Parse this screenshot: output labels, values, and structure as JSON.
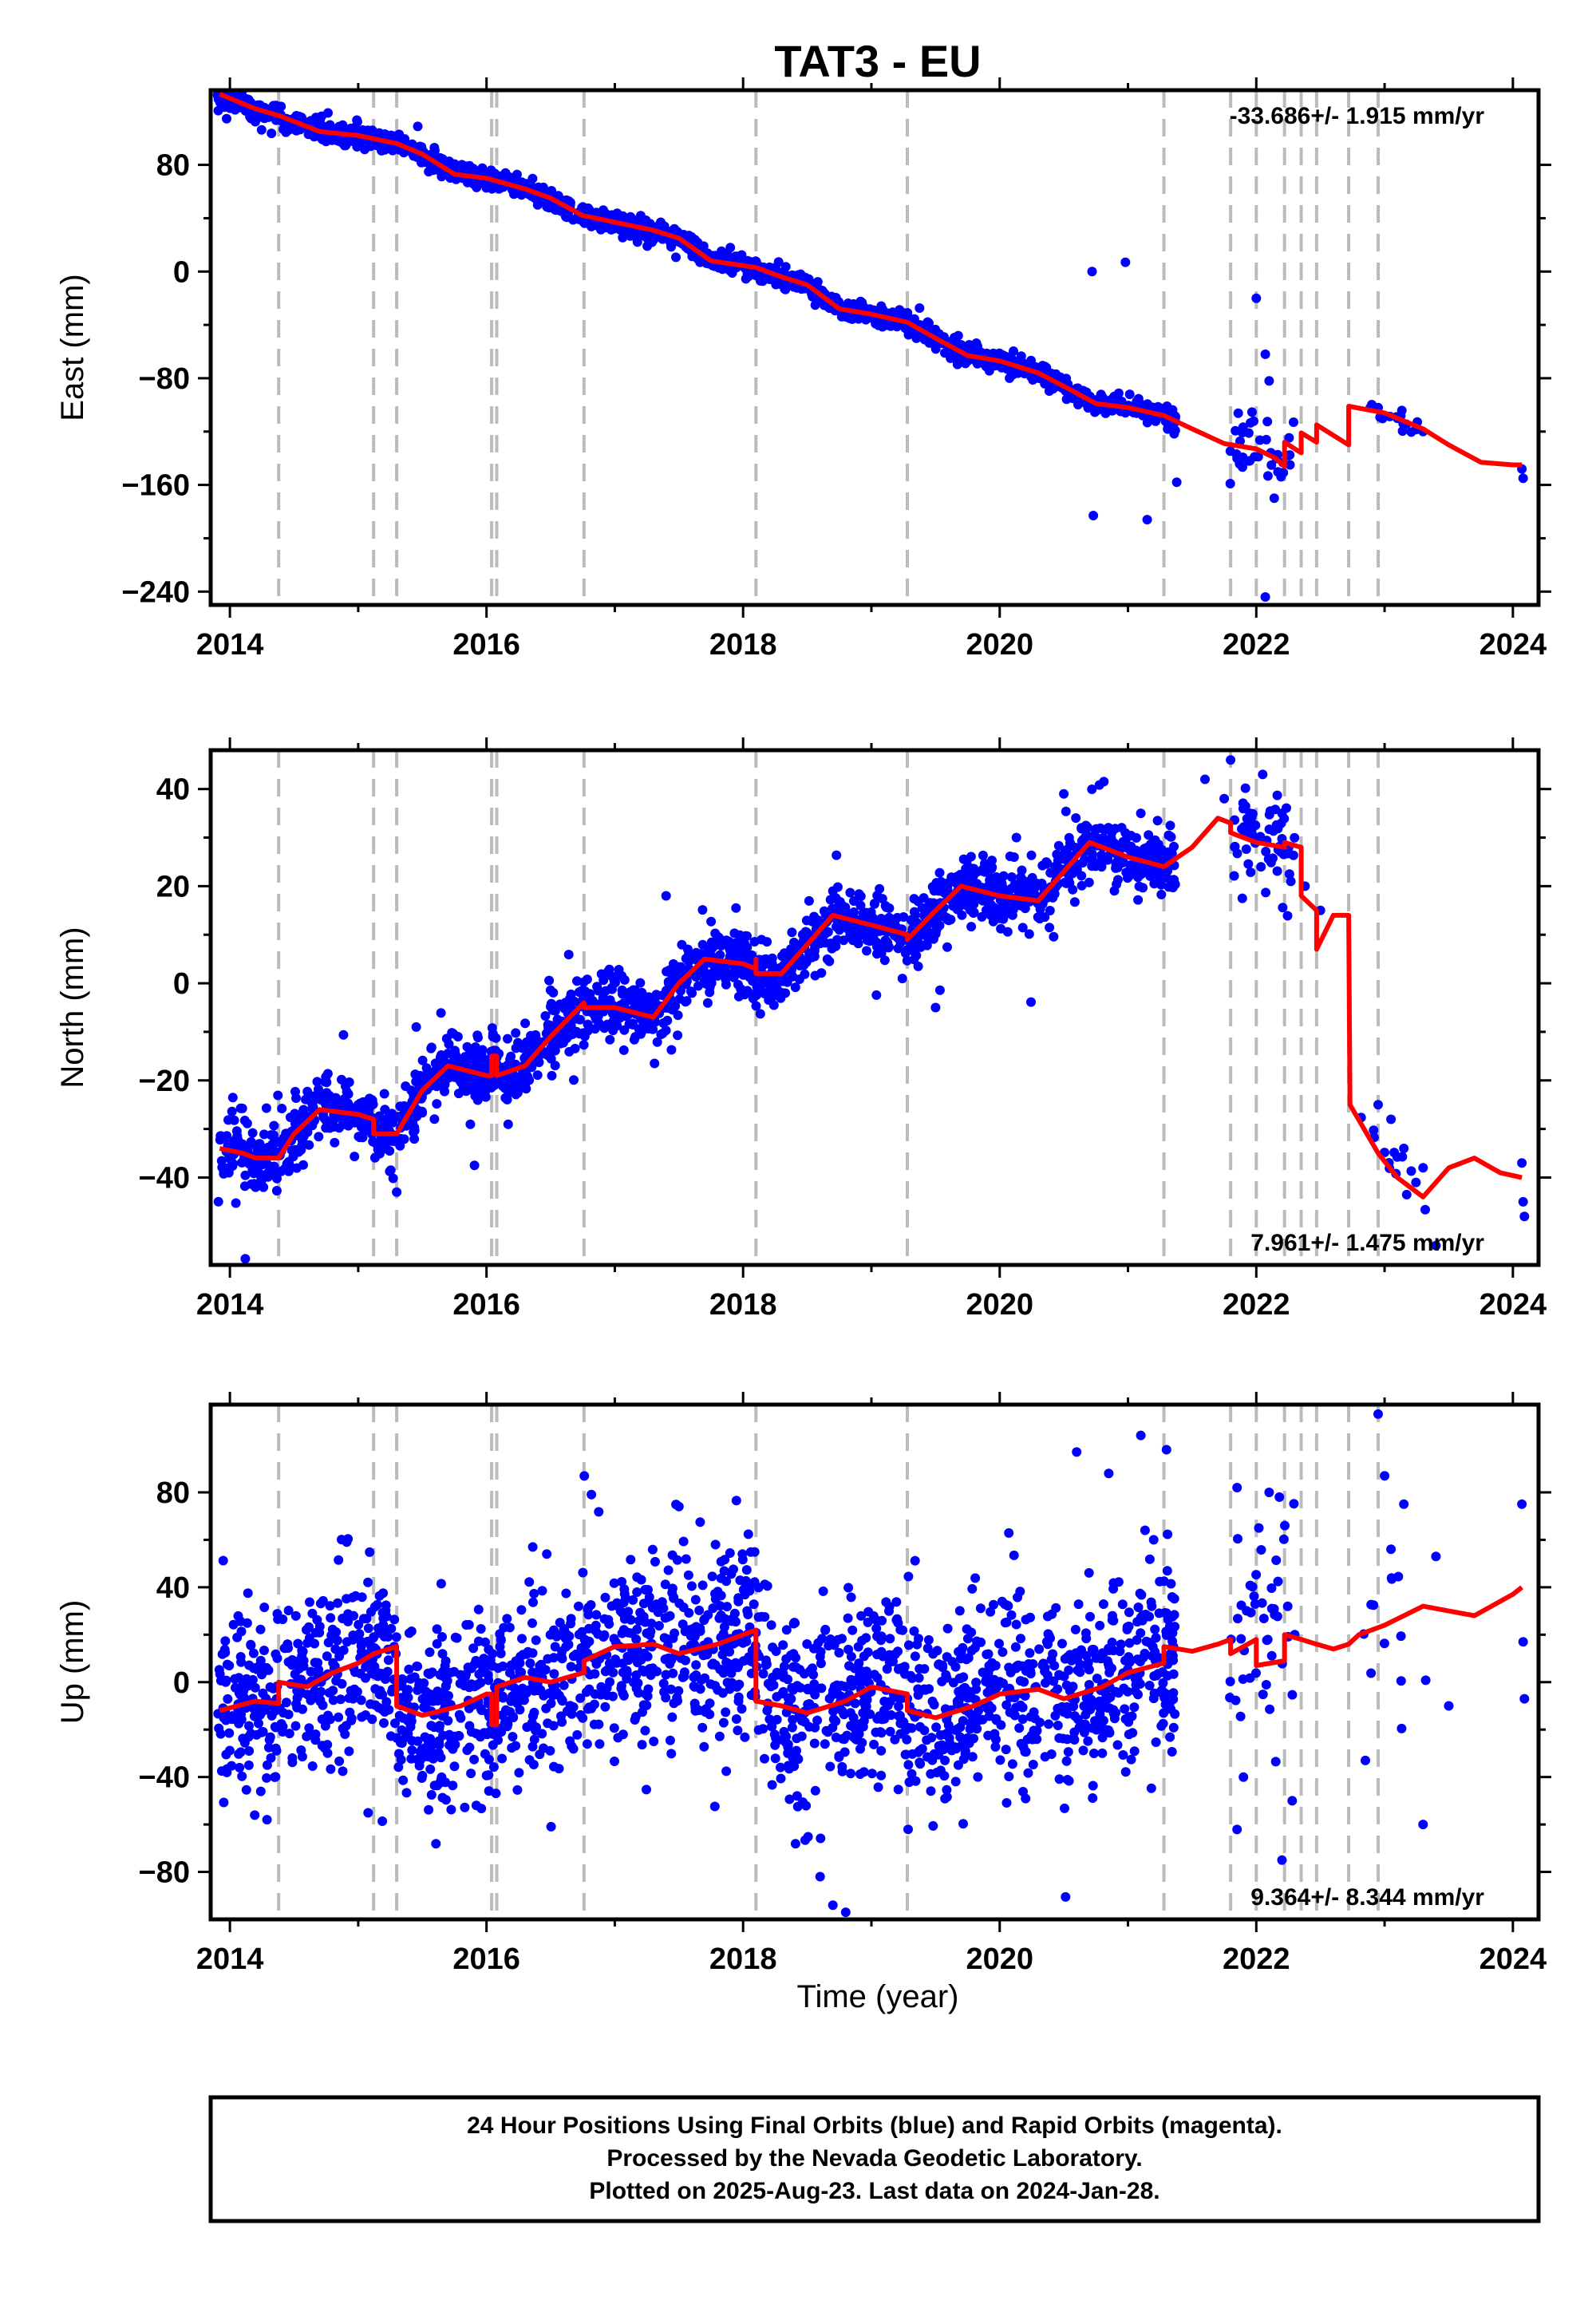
{
  "title": "TAT3 - EU",
  "xlabel": "Time (year)",
  "x_tick_labels": [
    "2014",
    "2016",
    "2018",
    "2020",
    "2022",
    "2024"
  ],
  "footer": {
    "line1": "24 Hour Positions Using Final Orbits (blue) and Rapid Orbits (magenta).",
    "line2": "Processed by the Nevada Geodetic Laboratory.",
    "line3": "Plotted on 2025-Aug-23. Last data on 2024-Jan-28."
  },
  "colors": {
    "points": "#0000ff",
    "model": "#ff0000",
    "event_lines": "#bbbbbb",
    "frame": "#000000"
  },
  "chart_data": [
    {
      "type": "scatter",
      "ylabel": "East (mm)",
      "rate_text": "-33.686+/- 1.915 mm/yr",
      "rate_position": "top-right",
      "xlim": [
        2013.85,
        2024.2
      ],
      "ylim": [
        -250,
        136
      ],
      "y_ticks": [
        80,
        0,
        -80,
        -160,
        -240
      ],
      "y_tick_labels": [
        "80",
        "0",
        "−80",
        "−160",
        "−240"
      ],
      "event_lines": [
        2014.38,
        2015.12,
        2015.3,
        2016.04,
        2016.08,
        2016.76,
        2018.1,
        2019.28,
        2021.28,
        2021.8,
        2022.0,
        2022.22,
        2022.35,
        2022.47,
        2022.72,
        2022.95
      ],
      "model": [
        [
          2013.92,
          133
        ],
        [
          2014.2,
          122
        ],
        [
          2014.38,
          117
        ],
        [
          2014.7,
          105
        ],
        [
          2015.0,
          102
        ],
        [
          2015.3,
          96
        ],
        [
          2015.5,
          88
        ],
        [
          2015.75,
          73
        ],
        [
          2016.0,
          70
        ],
        [
          2016.3,
          62
        ],
        [
          2016.5,
          55
        ],
        [
          2016.75,
          42
        ],
        [
          2017.0,
          37
        ],
        [
          2017.3,
          31
        ],
        [
          2017.5,
          25
        ],
        [
          2017.75,
          8
        ],
        [
          2018.1,
          3
        ],
        [
          2018.3,
          -4
        ],
        [
          2018.5,
          -10
        ],
        [
          2018.75,
          -28
        ],
        [
          2019.0,
          -32
        ],
        [
          2019.28,
          -38
        ],
        [
          2019.5,
          -50
        ],
        [
          2019.75,
          -63
        ],
        [
          2020.0,
          -67
        ],
        [
          2020.3,
          -76
        ],
        [
          2020.5,
          -86
        ],
        [
          2020.75,
          -99
        ],
        [
          2021.0,
          -102
        ],
        [
          2021.28,
          -108
        ],
        [
          2021.5,
          -118
        ],
        [
          2021.75,
          -129
        ],
        [
          2022.0,
          -133
        ],
        [
          2022.15,
          -140
        ],
        [
          2022.22,
          -146
        ],
        [
          2022.22,
          -128
        ],
        [
          2022.35,
          -136
        ],
        [
          2022.35,
          -121
        ],
        [
          2022.47,
          -128
        ],
        [
          2022.47,
          -115
        ],
        [
          2022.72,
          -130
        ],
        [
          2022.72,
          -101
        ],
        [
          2023.0,
          -106
        ],
        [
          2023.3,
          -118
        ],
        [
          2023.5,
          -130
        ],
        [
          2023.75,
          -143
        ],
        [
          2024.0,
          -145
        ],
        [
          2024.07,
          -145
        ]
      ],
      "points": [
        [
          2013.95,
          132
        ],
        [
          2014.15,
          124
        ],
        [
          2014.6,
          109
        ],
        [
          2015.0,
          102
        ],
        [
          2015.6,
          83
        ],
        [
          2016.0,
          70
        ],
        [
          2016.6,
          50
        ],
        [
          2017.2,
          32
        ],
        [
          2017.8,
          4
        ],
        [
          2018.3,
          -5
        ],
        [
          2019.0,
          -33
        ],
        [
          2019.7,
          -60
        ],
        [
          2020.2,
          -71
        ],
        [
          2020.8,
          -100
        ],
        [
          2021.2,
          -108
        ],
        [
          2020.72,
          0
        ],
        [
          2020.98,
          7
        ],
        [
          2020.73,
          -183
        ],
        [
          2021.15,
          -186
        ],
        [
          2021.38,
          -158
        ],
        [
          2021.85,
          -140
        ],
        [
          2022.0,
          -20
        ],
        [
          2022.07,
          -62
        ],
        [
          2022.1,
          -82
        ],
        [
          2022.14,
          -170
        ],
        [
          2022.25,
          -138
        ],
        [
          2022.07,
          -244
        ],
        [
          2022.95,
          -102
        ],
        [
          2023.1,
          -110
        ],
        [
          2023.3,
          -120
        ],
        [
          2024.07,
          -148
        ],
        [
          2024.08,
          -155
        ]
      ],
      "scatter_segments": [
        {
          "x_start": 2013.9,
          "x_end": 2021.37,
          "count": 1900,
          "spread": 3.5,
          "outlier_frac": 0.05,
          "outlier_spread": 9
        },
        {
          "x_start": 2021.78,
          "x_end": 2022.3,
          "count": 35,
          "spread": 10,
          "outlier_frac": 0.3,
          "outlier_spread": 20
        },
        {
          "x_start": 2022.8,
          "x_end": 2023.35,
          "count": 14,
          "spread": 4,
          "outlier_frac": 0.1,
          "outlier_spread": 6
        }
      ]
    },
    {
      "type": "scatter",
      "ylabel": "North (mm)",
      "rate_text": "7.961+/- 1.475 mm/yr",
      "rate_position": "bottom-right",
      "xlim": [
        2013.85,
        2024.2
      ],
      "ylim": [
        -58,
        48
      ],
      "y_ticks": [
        40,
        20,
        0,
        -20,
        -40
      ],
      "y_tick_labels": [
        "40",
        "20",
        "0",
        "−20",
        "−40"
      ],
      "event_lines": [
        2014.38,
        2015.12,
        2015.3,
        2016.04,
        2016.08,
        2016.76,
        2018.1,
        2019.28,
        2021.28,
        2021.8,
        2022.0,
        2022.22,
        2022.35,
        2022.47,
        2022.72,
        2022.95
      ],
      "model": [
        [
          2013.92,
          -34
        ],
        [
          2014.1,
          -35
        ],
        [
          2014.2,
          -36
        ],
        [
          2014.38,
          -36
        ],
        [
          2014.5,
          -31
        ],
        [
          2014.7,
          -26
        ],
        [
          2015.0,
          -27
        ],
        [
          2015.12,
          -28
        ],
        [
          2015.12,
          -31
        ],
        [
          2015.3,
          -31
        ],
        [
          2015.5,
          -22
        ],
        [
          2015.7,
          -17
        ],
        [
          2016.0,
          -19
        ],
        [
          2016.04,
          -19
        ],
        [
          2016.04,
          -15
        ],
        [
          2016.08,
          -15
        ],
        [
          2016.08,
          -19
        ],
        [
          2016.3,
          -17
        ],
        [
          2016.5,
          -11
        ],
        [
          2016.76,
          -4
        ],
        [
          2016.76,
          -5
        ],
        [
          2017.0,
          -5
        ],
        [
          2017.3,
          -7
        ],
        [
          2017.5,
          0
        ],
        [
          2017.7,
          5
        ],
        [
          2018.0,
          4
        ],
        [
          2018.1,
          3
        ],
        [
          2018.1,
          5
        ],
        [
          2018.1,
          2
        ],
        [
          2018.3,
          2
        ],
        [
          2018.5,
          8
        ],
        [
          2018.7,
          14
        ],
        [
          2019.0,
          12
        ],
        [
          2019.28,
          10
        ],
        [
          2019.28,
          9
        ],
        [
          2019.5,
          15
        ],
        [
          2019.7,
          20
        ],
        [
          2020.0,
          18
        ],
        [
          2020.3,
          17
        ],
        [
          2020.5,
          23
        ],
        [
          2020.7,
          29
        ],
        [
          2021.0,
          26
        ],
        [
          2021.28,
          24
        ],
        [
          2021.5,
          28
        ],
        [
          2021.7,
          34
        ],
        [
          2021.8,
          33
        ],
        [
          2021.8,
          31
        ],
        [
          2022.0,
          29
        ],
        [
          2022.22,
          28
        ],
        [
          2022.22,
          29
        ],
        [
          2022.35,
          28
        ],
        [
          2022.35,
          18
        ],
        [
          2022.47,
          15
        ],
        [
          2022.47,
          7
        ],
        [
          2022.6,
          14
        ],
        [
          2022.72,
          14
        ],
        [
          2022.73,
          -25
        ],
        [
          2022.95,
          -35
        ],
        [
          2023.1,
          -40
        ],
        [
          2023.3,
          -44
        ],
        [
          2023.5,
          -38
        ],
        [
          2023.7,
          -36
        ],
        [
          2023.9,
          -39
        ],
        [
          2024.07,
          -40
        ]
      ],
      "points": [
        [
          2014.0,
          -38
        ],
        [
          2014.2,
          -42
        ],
        [
          2015.3,
          -43
        ],
        [
          2017.4,
          18
        ],
        [
          2018.7,
          19
        ],
        [
          2019.5,
          -5
        ],
        [
          2020.5,
          39
        ],
        [
          2021.1,
          35
        ],
        [
          2021.6,
          42
        ],
        [
          2021.75,
          38
        ],
        [
          2021.8,
          46
        ],
        [
          2021.95,
          35
        ],
        [
          2022.05,
          43
        ],
        [
          2022.2,
          35
        ],
        [
          2022.38,
          20
        ],
        [
          2022.5,
          15
        ],
        [
          2022.95,
          -25
        ],
        [
          2023.05,
          -28
        ],
        [
          2023.15,
          -34
        ],
        [
          2023.3,
          -38
        ],
        [
          2023.4,
          -54
        ],
        [
          2024.07,
          -37
        ],
        [
          2024.08,
          -45
        ],
        [
          2024.09,
          -48
        ]
      ],
      "scatter_segments": [
        {
          "x_start": 2013.9,
          "x_end": 2021.37,
          "count": 1900,
          "spread": 3.2,
          "outlier_frac": 0.05,
          "outlier_spread": 8
        },
        {
          "x_start": 2021.78,
          "x_end": 2022.3,
          "count": 60,
          "spread": 4,
          "outlier_frac": 0.2,
          "outlier_spread": 8
        },
        {
          "x_start": 2022.8,
          "x_end": 2023.35,
          "count": 14,
          "spread": 3,
          "outlier_frac": 0.1,
          "outlier_spread": 5
        }
      ]
    },
    {
      "type": "scatter",
      "ylabel": "Up (mm)",
      "rate_text": "9.364+/- 8.344 mm/yr",
      "rate_position": "bottom-right",
      "xlim": [
        2013.85,
        2024.2
      ],
      "ylim": [
        -100,
        117
      ],
      "y_ticks": [
        80,
        40,
        0,
        -40,
        -80
      ],
      "y_tick_labels": [
        "80",
        "40",
        "0",
        "−40",
        "−80"
      ],
      "event_lines": [
        2014.38,
        2015.12,
        2015.3,
        2016.04,
        2016.08,
        2016.76,
        2018.1,
        2019.28,
        2021.28,
        2021.8,
        2022.0,
        2022.22,
        2022.35,
        2022.47,
        2022.72,
        2022.95
      ],
      "model": [
        [
          2013.92,
          -12
        ],
        [
          2014.2,
          -8
        ],
        [
          2014.38,
          -9
        ],
        [
          2014.38,
          0
        ],
        [
          2014.6,
          -2
        ],
        [
          2014.8,
          4
        ],
        [
          2015.0,
          8
        ],
        [
          2015.12,
          12
        ],
        [
          2015.3,
          15
        ],
        [
          2015.3,
          -10
        ],
        [
          2015.5,
          -14
        ],
        [
          2015.8,
          -10
        ],
        [
          2016.0,
          -5
        ],
        [
          2016.04,
          -5
        ],
        [
          2016.04,
          -18
        ],
        [
          2016.08,
          -18
        ],
        [
          2016.08,
          -2
        ],
        [
          2016.3,
          2
        ],
        [
          2016.5,
          0
        ],
        [
          2016.76,
          4
        ],
        [
          2016.76,
          9
        ],
        [
          2017.0,
          15
        ],
        [
          2017.3,
          16
        ],
        [
          2017.5,
          12
        ],
        [
          2017.8,
          16
        ],
        [
          2018.1,
          22
        ],
        [
          2018.1,
          -8
        ],
        [
          2018.3,
          -10
        ],
        [
          2018.5,
          -13
        ],
        [
          2018.8,
          -8
        ],
        [
          2019.0,
          -2
        ],
        [
          2019.28,
          -5
        ],
        [
          2019.28,
          -12
        ],
        [
          2019.5,
          -15
        ],
        [
          2019.8,
          -10
        ],
        [
          2020.0,
          -5
        ],
        [
          2020.3,
          -3
        ],
        [
          2020.5,
          -7
        ],
        [
          2020.8,
          -2
        ],
        [
          2021.0,
          4
        ],
        [
          2021.28,
          8
        ],
        [
          2021.28,
          15
        ],
        [
          2021.5,
          13
        ],
        [
          2021.7,
          16
        ],
        [
          2021.8,
          18
        ],
        [
          2021.8,
          12
        ],
        [
          2022.0,
          18
        ],
        [
          2022.0,
          7
        ],
        [
          2022.22,
          9
        ],
        [
          2022.22,
          20
        ],
        [
          2022.35,
          18
        ],
        [
          2022.47,
          16
        ],
        [
          2022.6,
          14
        ],
        [
          2022.72,
          16
        ],
        [
          2022.8,
          20
        ],
        [
          2023.0,
          24
        ],
        [
          2023.3,
          32
        ],
        [
          2023.5,
          30
        ],
        [
          2023.7,
          28
        ],
        [
          2024.0,
          37
        ],
        [
          2024.07,
          40
        ]
      ],
      "points": [
        [
          2017.5,
          74
        ],
        [
          2018.6,
          -82
        ],
        [
          2018.7,
          -94
        ],
        [
          2018.8,
          -97
        ],
        [
          2020.6,
          97
        ],
        [
          2020.85,
          88
        ],
        [
          2021.1,
          104
        ],
        [
          2021.2,
          60
        ],
        [
          2021.3,
          98
        ],
        [
          2021.85,
          82
        ],
        [
          2021.9,
          -40
        ],
        [
          2022.02,
          65
        ],
        [
          2022.1,
          80
        ],
        [
          2022.18,
          78
        ],
        [
          2022.2,
          -75
        ],
        [
          2022.28,
          -50
        ],
        [
          2022.3,
          20
        ],
        [
          2022.85,
          -33
        ],
        [
          2022.95,
          113
        ],
        [
          2023.0,
          87
        ],
        [
          2023.05,
          56
        ],
        [
          2023.15,
          75
        ],
        [
          2023.3,
          -60
        ],
        [
          2023.4,
          53
        ],
        [
          2023.5,
          -10
        ],
        [
          2024.07,
          75
        ],
        [
          2024.08,
          17
        ],
        [
          2024.09,
          -7
        ]
      ],
      "scatter_segments": [
        {
          "x_start": 2013.9,
          "x_end": 2021.37,
          "count": 2000,
          "spread": 20,
          "outlier_frac": 0.05,
          "outlier_spread": 30
        },
        {
          "x_start": 2021.78,
          "x_end": 2022.3,
          "count": 45,
          "spread": 22,
          "outlier_frac": 0.25,
          "outlier_spread": 35
        },
        {
          "x_start": 2022.8,
          "x_end": 2023.35,
          "count": 12,
          "spread": 20,
          "outlier_frac": 0.2,
          "outlier_spread": 35
        }
      ]
    }
  ]
}
